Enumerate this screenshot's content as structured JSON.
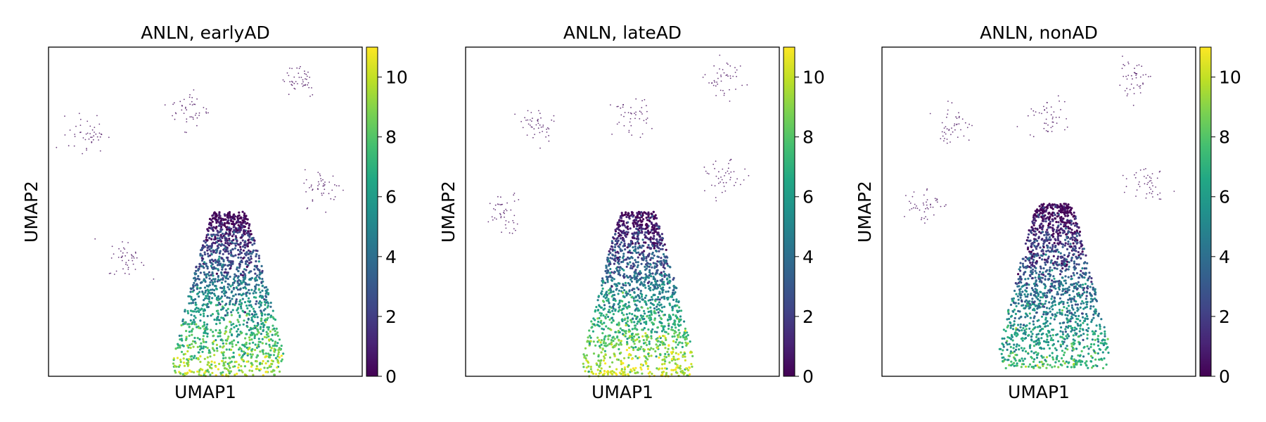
{
  "chart_data": [
    {
      "type": "scatter",
      "title": "ANLN, earlyAD",
      "xlabel": "UMAP1",
      "ylabel": "UMAP2",
      "colorbar": {
        "colormap": "viridis",
        "range": [
          0,
          11
        ],
        "ticks": [
          "0",
          "2",
          "4",
          "6",
          "8",
          "10"
        ]
      },
      "grid": false,
      "clusters": [
        {
          "name": "main-cluster",
          "x": 1.5,
          "y": -5.5,
          "value": 6.5,
          "spread": "large"
        },
        {
          "name": "small-cluster",
          "x": -7.5,
          "y": 5.5,
          "value": 0.3,
          "spread": "small"
        },
        {
          "name": "small-cluster",
          "x": -1.0,
          "y": 7.0,
          "value": 0.3,
          "spread": "small"
        },
        {
          "name": "small-cluster",
          "x": 6.0,
          "y": 9.0,
          "value": 0.3,
          "spread": "small"
        },
        {
          "name": "small-cluster",
          "x": 7.5,
          "y": 2.0,
          "value": 0.3,
          "spread": "small"
        },
        {
          "name": "small-cluster",
          "x": -5.0,
          "y": -2.5,
          "value": 0.3,
          "spread": "small"
        }
      ]
    },
    {
      "type": "scatter",
      "title": "ANLN, lateAD",
      "xlabel": "UMAP1",
      "ylabel": "UMAP2",
      "colorbar": {
        "colormap": "viridis",
        "range": [
          0,
          11
        ],
        "ticks": [
          "0",
          "2",
          "4",
          "6",
          "8",
          "10"
        ]
      },
      "grid": false,
      "clusters": [
        {
          "name": "main-cluster",
          "x": 1.0,
          "y": -5.5,
          "value": 7.0,
          "spread": "large"
        },
        {
          "name": "small-cluster",
          "x": -5.5,
          "y": 6.0,
          "value": 0.3,
          "spread": "small"
        },
        {
          "name": "small-cluster",
          "x": 0.5,
          "y": 6.5,
          "value": 0.3,
          "spread": "small"
        },
        {
          "name": "small-cluster",
          "x": 6.5,
          "y": 9.0,
          "value": 0.3,
          "spread": "small"
        },
        {
          "name": "small-cluster",
          "x": 6.5,
          "y": 2.5,
          "value": 0.3,
          "spread": "small"
        },
        {
          "name": "small-cluster",
          "x": -7.5,
          "y": 0.5,
          "value": 0.3,
          "spread": "small"
        }
      ]
    },
    {
      "type": "scatter",
      "title": "ANLN, nonAD",
      "xlabel": "UMAP1",
      "ylabel": "UMAP2",
      "colorbar": {
        "colormap": "viridis",
        "range": [
          0,
          11
        ],
        "ticks": [
          "0",
          "2",
          "4",
          "6",
          "8",
          "10"
        ]
      },
      "grid": false,
      "clusters": [
        {
          "name": "main-cluster",
          "x": 1.0,
          "y": -5.0,
          "value": 5.0,
          "spread": "large"
        },
        {
          "name": "small-cluster",
          "x": -5.5,
          "y": 6.0,
          "value": 0.3,
          "spread": "small"
        },
        {
          "name": "small-cluster",
          "x": 0.5,
          "y": 6.5,
          "value": 0.3,
          "spread": "small"
        },
        {
          "name": "small-cluster",
          "x": 6.0,
          "y": 9.0,
          "value": 0.3,
          "spread": "small"
        },
        {
          "name": "small-cluster",
          "x": 7.0,
          "y": 2.5,
          "value": 0.3,
          "spread": "small"
        },
        {
          "name": "small-cluster",
          "x": -7.5,
          "y": 1.0,
          "value": 0.3,
          "spread": "small"
        }
      ]
    }
  ]
}
